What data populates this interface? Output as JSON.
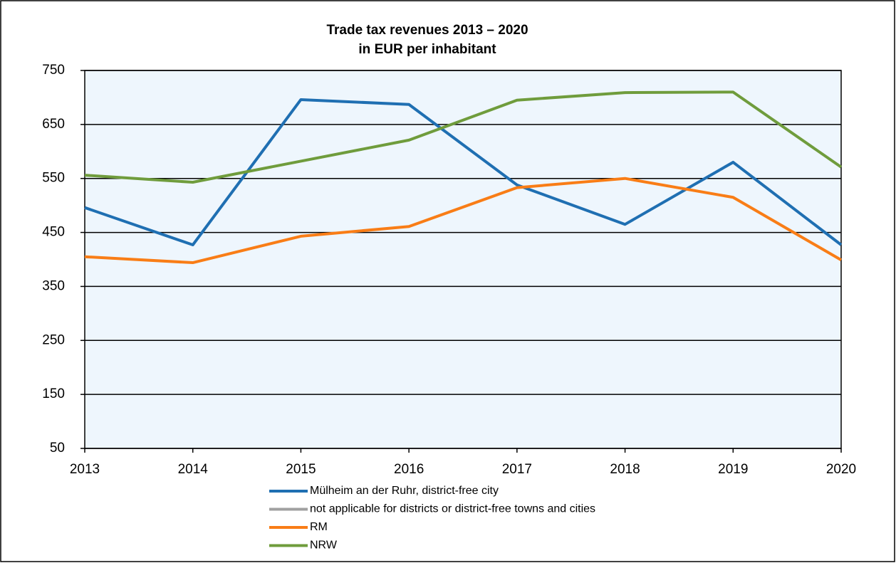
{
  "chart_data": {
    "type": "line",
    "title": "Trade tax revenues  2013 – 2020",
    "subtitle": "in EUR per inhabitant",
    "categories": [
      "2013",
      "2014",
      "2015",
      "2016",
      "2017",
      "2018",
      "2019",
      "2020"
    ],
    "series": [
      {
        "name": "Mülheim an der Ruhr, district-free city",
        "color": "#1f6fb2",
        "values": [
          496,
          427,
          696,
          687,
          538,
          465,
          580,
          427
        ]
      },
      {
        "name": "not applicable for districts or district-free towns and cities",
        "color": "#a0a0a0",
        "values": [
          null,
          null,
          null,
          null,
          null,
          null,
          null,
          null
        ]
      },
      {
        "name": "RM",
        "color": "#f97d16",
        "values": [
          405,
          394,
          443,
          461,
          533,
          550,
          515,
          399
        ]
      },
      {
        "name": "NRW",
        "color": "#6f9c3c",
        "values": [
          556,
          543,
          582,
          621,
          695,
          709,
          710,
          571
        ]
      }
    ],
    "ylim": [
      50,
      750
    ],
    "yticks": [
      50,
      150,
      250,
      350,
      450,
      550,
      650,
      750
    ],
    "grid": true
  }
}
